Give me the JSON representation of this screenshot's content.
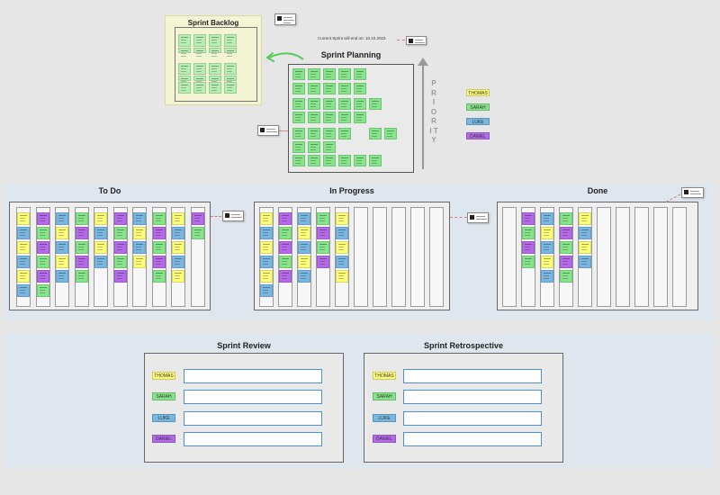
{
  "colors": {
    "yellow": "#fdfd7a",
    "green": "#86e58a",
    "blue": "#79b7e3",
    "purple": "#b56ae9",
    "green_light": "#b7eeb4",
    "accent": "#4a90d9"
  },
  "backlog": {
    "title": "Sprint Backlog"
  },
  "planning": {
    "title": "Sprint Planning"
  },
  "sprint_end": {
    "text": "Current Sprint will end on: 10.10.2015"
  },
  "priority": {
    "label": "P R I O R I T Y"
  },
  "legend": [
    {
      "name": "THOMAS",
      "color": "yellow"
    },
    {
      "name": "SARAH",
      "color": "green"
    },
    {
      "name": "LUKE",
      "color": "blue"
    },
    {
      "name": "DANIEL",
      "color": "purple"
    }
  ],
  "board": {
    "todo": {
      "title": "To Do"
    },
    "inprogress": {
      "title": "In Progress"
    },
    "done": {
      "title": "Done"
    }
  },
  "review": {
    "title": "Sprint Review"
  },
  "retro": {
    "title": "Sprint Retrospective"
  },
  "members": [
    {
      "name": "THOMAS",
      "color": "yellow"
    },
    {
      "name": "SARAH",
      "color": "green"
    },
    {
      "name": "LUKE",
      "color": "blue"
    },
    {
      "name": "DANIEL",
      "color": "purple"
    }
  ],
  "icons": [
    "arrow-left-icon",
    "priority-arrow-icon",
    "comment-icon"
  ]
}
